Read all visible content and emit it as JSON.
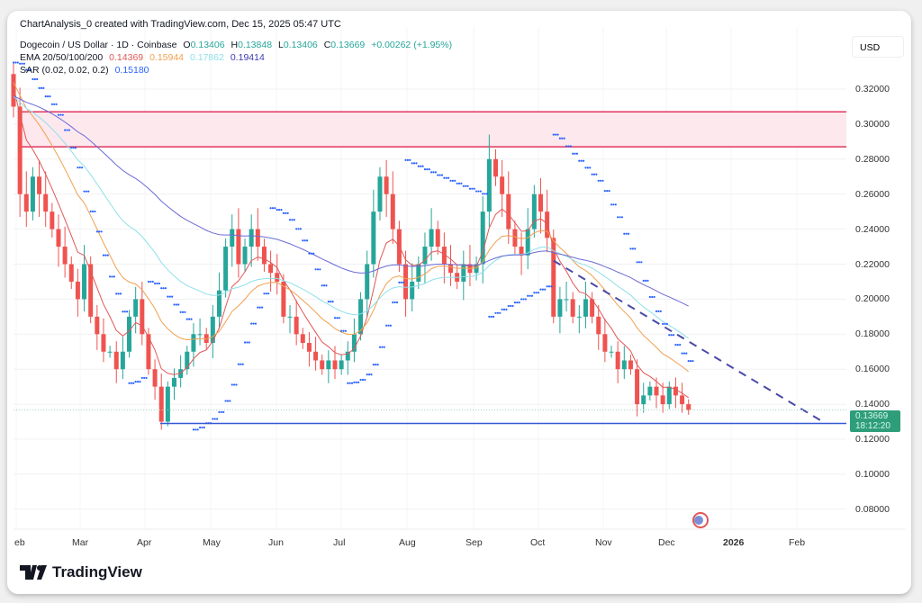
{
  "header": {
    "created": "ChartAnalysis_0 created with TradingView.com, Dec 15, 2025 05:47 UTC"
  },
  "legend": {
    "symbol": "Dogecoin / US Dollar · 1D · Coinbase",
    "o_label": "O",
    "o": "0.13406",
    "h_label": "H",
    "h": "0.13848",
    "l_label": "L",
    "l": "0.13406",
    "c_label": "C",
    "c": "0.13669",
    "change": "+0.00262 (+1.95%)",
    "ema_label": "EMA 20/50/100/200",
    "ema20": "0.14369",
    "ema50": "0.15944",
    "ema100": "0.17862",
    "ema200": "0.19414",
    "sar_label": "SAR (0.02, 0.02, 0.2)",
    "sar": "0.15180"
  },
  "axis": {
    "currency": "USD",
    "price_label": "0.13669",
    "countdown": "18:12:20"
  },
  "colors": {
    "up": "#26a69a",
    "down": "#ef5350",
    "ema20": "#e05757",
    "ema50": "#f0a050",
    "ema100": "#8fe0ea",
    "ema200": "#6b6bd6",
    "sar": "#2962ff",
    "zone": "#e0365f",
    "support": "#3558d6",
    "trend": "#4a4aa8"
  },
  "branding": {
    "logo": "TradingView",
    "logo_icon": "tradingview-logo"
  },
  "chart_data": {
    "type": "candlestick",
    "interval": "1D",
    "x_ticks": [
      "Feb",
      "Mar",
      "Apr",
      "May",
      "Jun",
      "Jul",
      "Aug",
      "Sep",
      "Oct",
      "Nov",
      "Dec",
      "2026",
      "Feb"
    ],
    "y_ticks": [
      "0.32000",
      "0.30000",
      "0.28000",
      "0.26000",
      "0.24000",
      "0.22000",
      "0.20000",
      "0.18000",
      "0.16000",
      "0.14000",
      "0.12000",
      "0.10000",
      "0.08000"
    ],
    "ylim": [
      0.07,
      0.34
    ],
    "xrange": [
      "2025-02-01",
      "2026-02-28"
    ],
    "close_series_start": "2025-02-01",
    "close_series_step_days": 3,
    "closes": [
      0.31,
      0.26,
      0.25,
      0.27,
      0.26,
      0.25,
      0.24,
      0.23,
      0.22,
      0.21,
      0.2,
      0.22,
      0.19,
      0.18,
      0.17,
      0.17,
      0.16,
      0.17,
      0.19,
      0.2,
      0.18,
      0.16,
      0.15,
      0.13,
      0.15,
      0.155,
      0.16,
      0.17,
      0.18,
      0.18,
      0.175,
      0.19,
      0.205,
      0.23,
      0.24,
      0.22,
      0.23,
      0.24,
      0.23,
      0.22,
      0.215,
      0.21,
      0.19,
      0.19,
      0.18,
      0.175,
      0.17,
      0.165,
      0.16,
      0.165,
      0.16,
      0.165,
      0.17,
      0.18,
      0.2,
      0.22,
      0.25,
      0.27,
      0.26,
      0.24,
      0.22,
      0.2,
      0.21,
      0.22,
      0.23,
      0.24,
      0.23,
      0.22,
      0.215,
      0.21,
      0.22,
      0.215,
      0.22,
      0.25,
      0.28,
      0.27,
      0.26,
      0.24,
      0.23,
      0.225,
      0.24,
      0.26,
      0.25,
      0.235,
      0.19,
      0.2,
      0.2,
      0.19,
      0.19,
      0.2,
      0.19,
      0.18,
      0.17,
      0.17,
      0.16,
      0.165,
      0.16,
      0.14,
      0.145,
      0.15,
      0.145,
      0.14,
      0.15,
      0.145,
      0.14,
      0.13669
    ],
    "resistance_zone": [
      0.287,
      0.307
    ],
    "support_level": 0.129,
    "trendline": {
      "from": [
        "2025-10-11",
        0.222
      ],
      "to": [
        "2026-02-15",
        0.129
      ],
      "style": "dashed"
    },
    "grid": true
  }
}
